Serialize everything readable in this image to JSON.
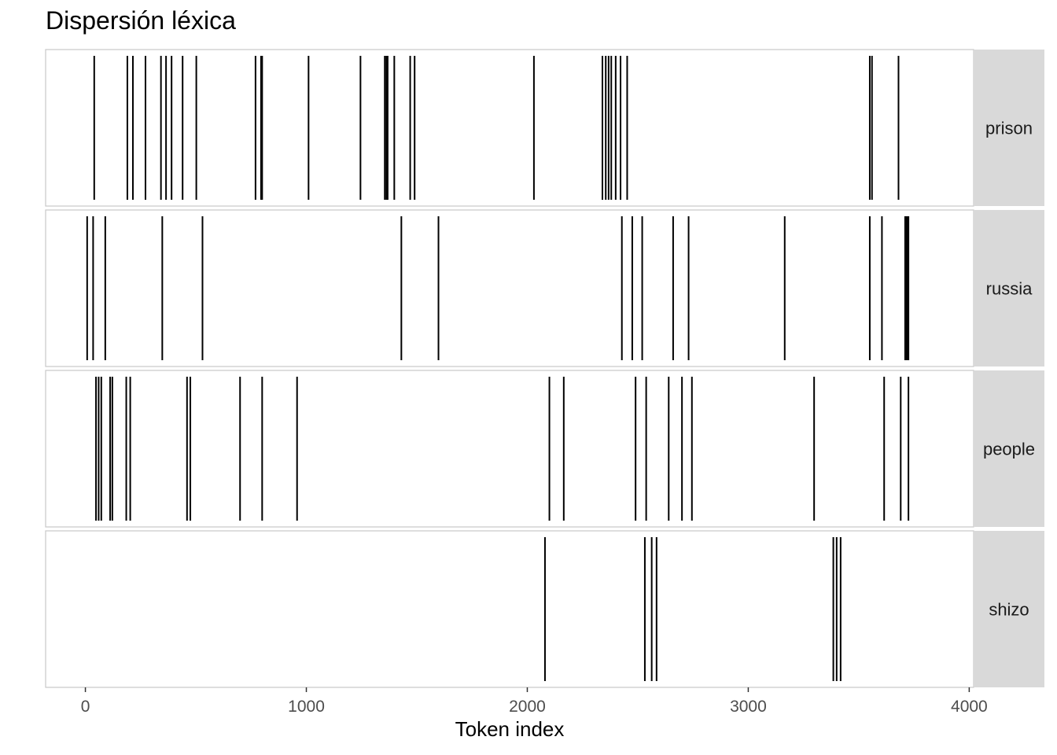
{
  "chart_data": {
    "type": "dispersion",
    "title": "Dispersión léxica",
    "xlabel": "Token index",
    "ylabel": "",
    "xlim": [
      -180,
      4020
    ],
    "x_ticks": [
      0,
      1000,
      2000,
      3000,
      4000
    ],
    "x_tick_labels": [
      "0",
      "1000",
      "2000",
      "3000",
      "4000"
    ],
    "grid": false,
    "facets": [
      {
        "label": "prison",
        "positions": [
          40,
          190,
          215,
          272,
          342,
          365,
          390,
          440,
          502,
          770,
          795,
          800,
          1010,
          1245,
          1355,
          1362,
          1368,
          1398,
          1470,
          1490,
          2030,
          2340,
          2355,
          2368,
          2380,
          2400,
          2422,
          2452,
          3550,
          3560,
          3680
        ]
      },
      {
        "label": "russia",
        "positions": [
          8,
          35,
          90,
          348,
          530,
          1430,
          1598,
          2428,
          2475,
          2520,
          2660,
          2730,
          3165,
          3550,
          3605,
          3710,
          3715,
          3720,
          3725
        ]
      },
      {
        "label": "people",
        "positions": [
          48,
          60,
          72,
          112,
          122,
          185,
          203,
          460,
          475,
          700,
          800,
          958,
          2100,
          2165,
          2490,
          2538,
          2640,
          2700,
          2745,
          3298,
          3615,
          3690,
          3725
        ]
      },
      {
        "label": "shizo",
        "positions": [
          2080,
          2532,
          2563,
          2585,
          3385,
          3400,
          3418
        ]
      }
    ]
  }
}
